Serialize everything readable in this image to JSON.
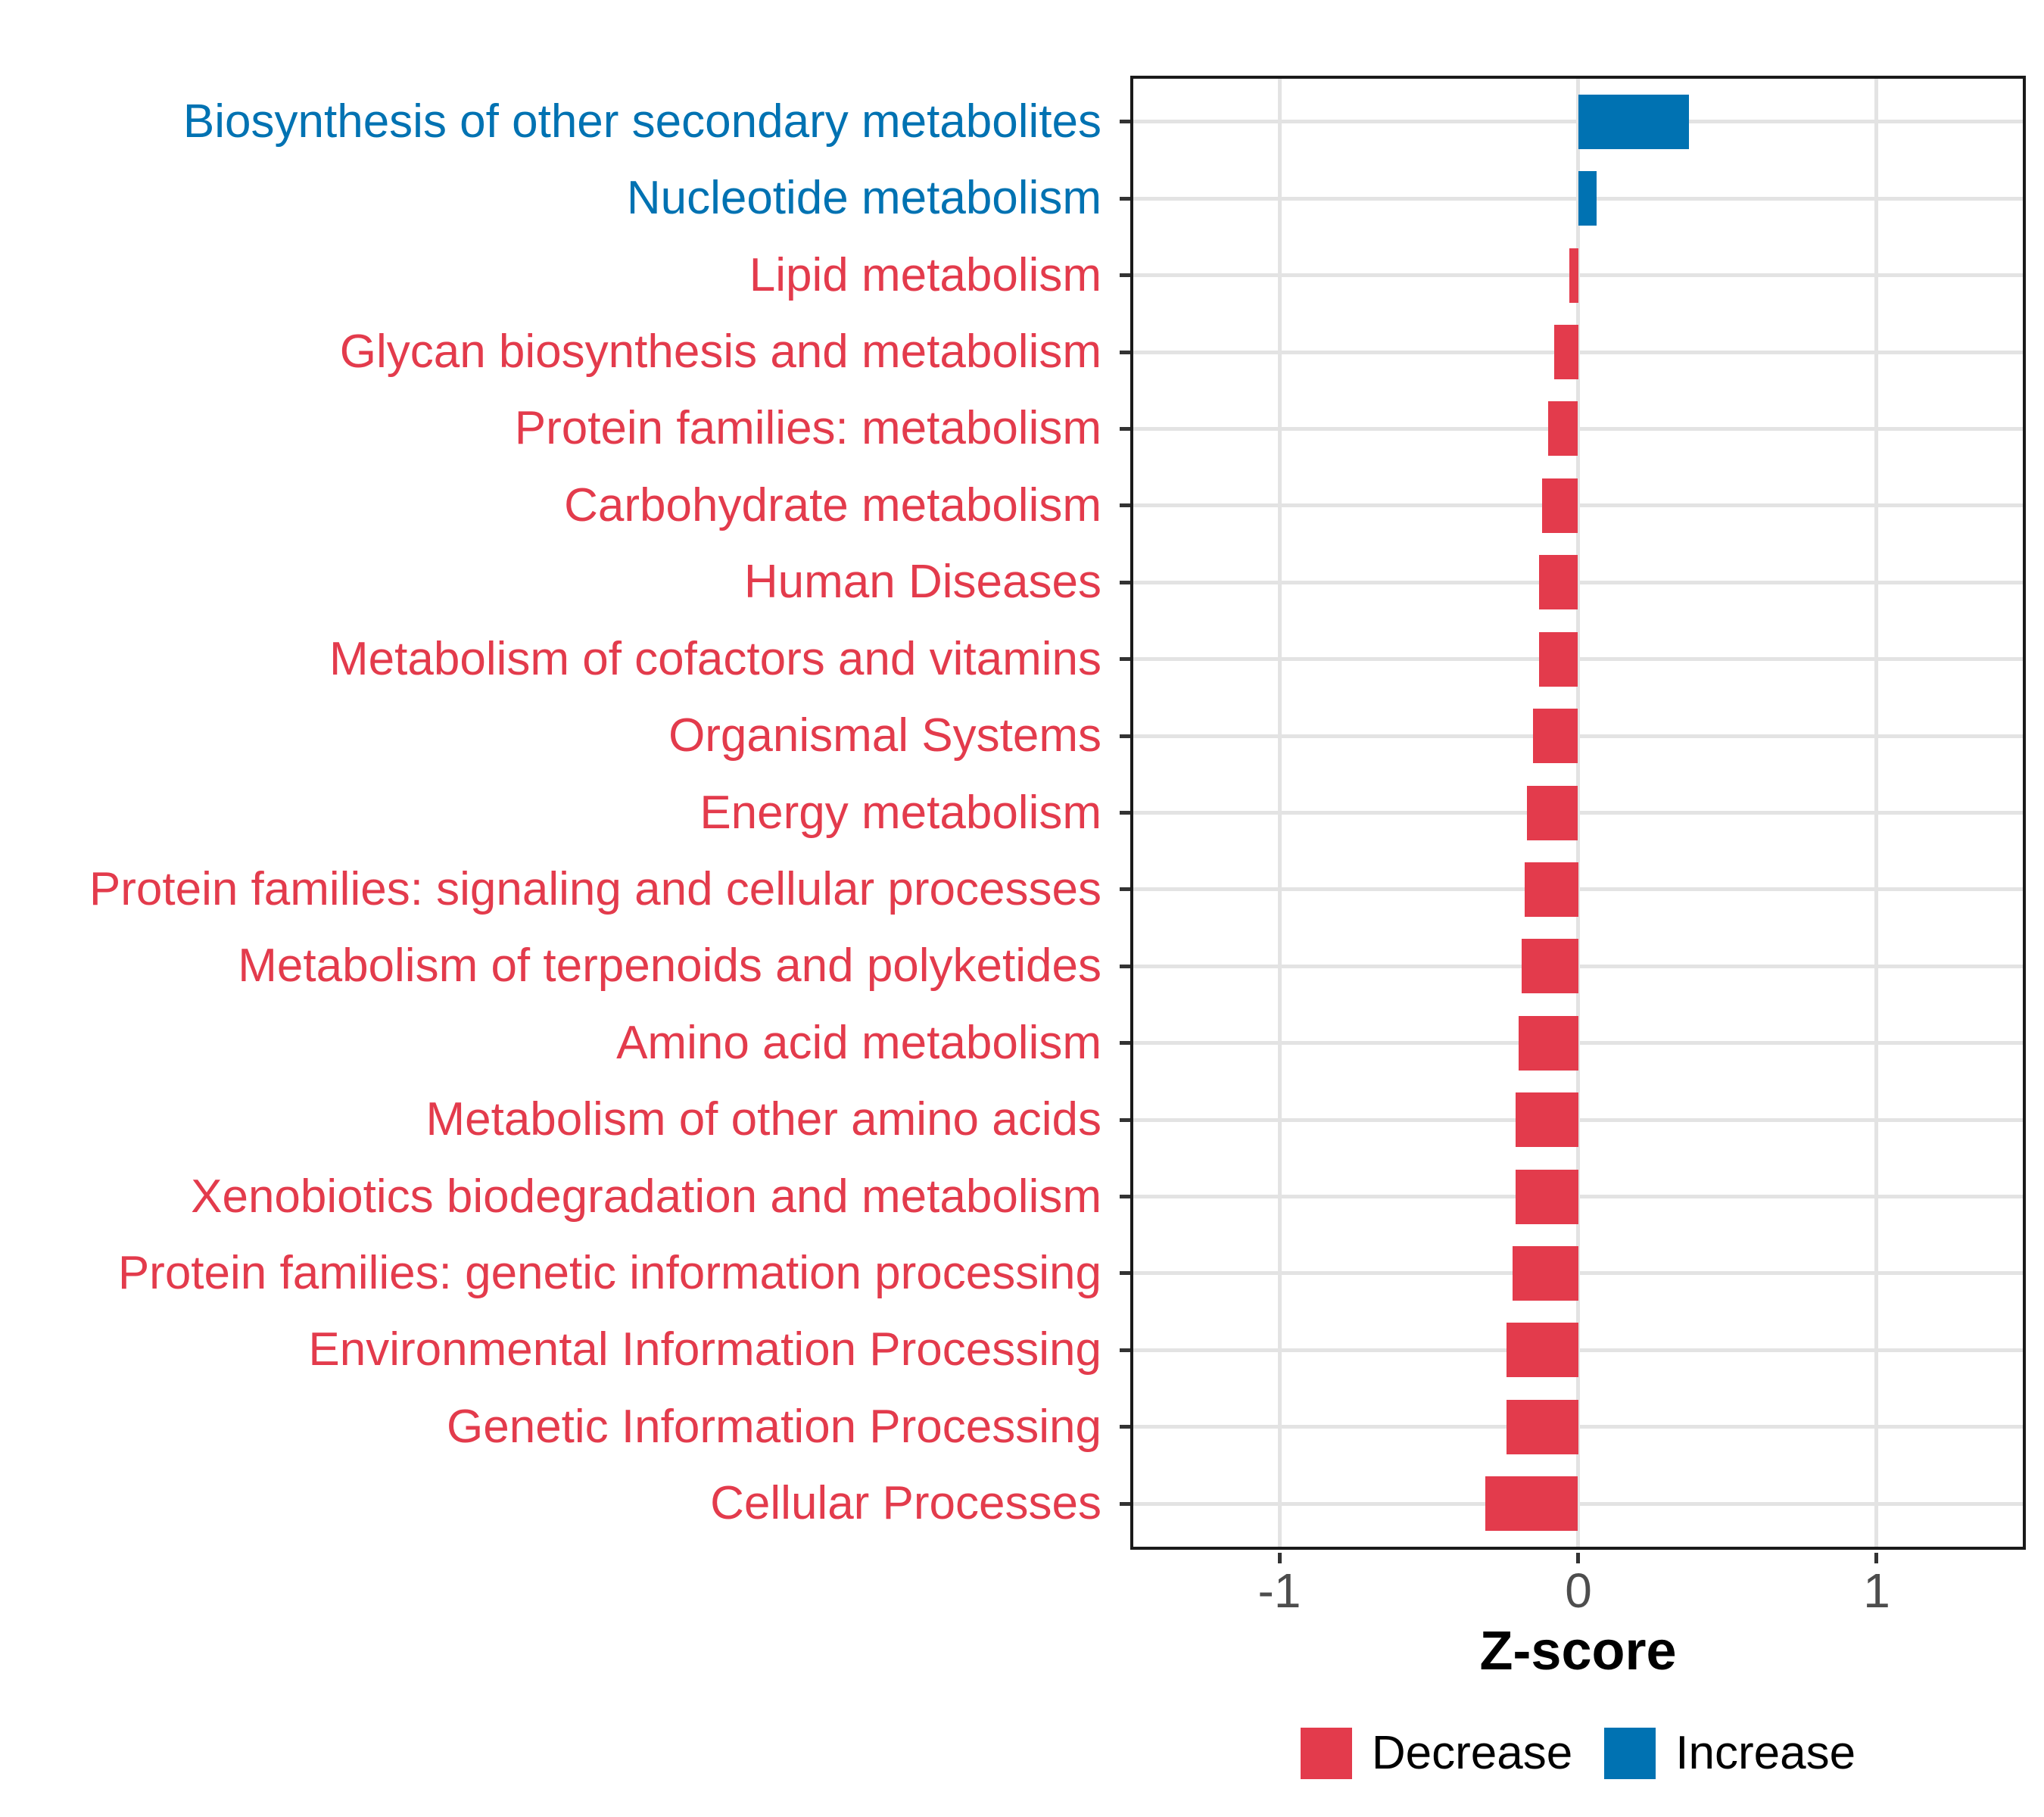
{
  "chart_data": {
    "type": "bar",
    "orientation": "horizontal",
    "title": "",
    "xlabel": "Z-score",
    "ylabel": "",
    "xlim": [
      -1.5,
      1.5
    ],
    "x_ticks": [
      -1,
      0,
      1
    ],
    "grid": true,
    "legend_position": "bottom",
    "legend": [
      {
        "name": "Decrease",
        "color": "#e33b4c"
      },
      {
        "name": "Increase",
        "color": "#0072b2"
      }
    ],
    "categories": [
      "Biosynthesis of other secondary metabolites",
      "Nucleotide metabolism",
      "Lipid metabolism",
      "Glycan biosynthesis and metabolism",
      "Protein families: metabolism",
      "Carbohydrate metabolism",
      "Human Diseases",
      "Metabolism of cofactors and vitamins",
      "Organismal Systems",
      "Energy metabolism",
      "Protein families: signaling and cellular processes",
      "Metabolism of terpenoids and polyketides",
      "Amino acid metabolism",
      "Metabolism of other amino acids",
      "Xenobiotics biodegradation and metabolism",
      "Protein families: genetic information processing",
      "Environmental Information Processing",
      "Genetic Information Processing",
      "Cellular Processes"
    ],
    "values": [
      0.37,
      0.06,
      -0.03,
      -0.08,
      -0.1,
      -0.12,
      -0.13,
      -0.13,
      -0.15,
      -0.17,
      -0.18,
      -0.19,
      -0.2,
      -0.21,
      -0.21,
      -0.22,
      -0.24,
      -0.24,
      -0.31
    ],
    "directions": [
      "Increase",
      "Increase",
      "Decrease",
      "Decrease",
      "Decrease",
      "Decrease",
      "Decrease",
      "Decrease",
      "Decrease",
      "Decrease",
      "Decrease",
      "Decrease",
      "Decrease",
      "Decrease",
      "Decrease",
      "Decrease",
      "Decrease",
      "Decrease",
      "Decrease"
    ]
  },
  "colors": {
    "decrease": "#e33b4c",
    "increase": "#0072b2",
    "gridline": "#e3e3e3",
    "panel_border": "#1a1a1a",
    "tick_mark": "#333333",
    "axis_tick_text": "#4d4d4d",
    "axis_title_text": "#000000",
    "background": "#ffffff"
  }
}
